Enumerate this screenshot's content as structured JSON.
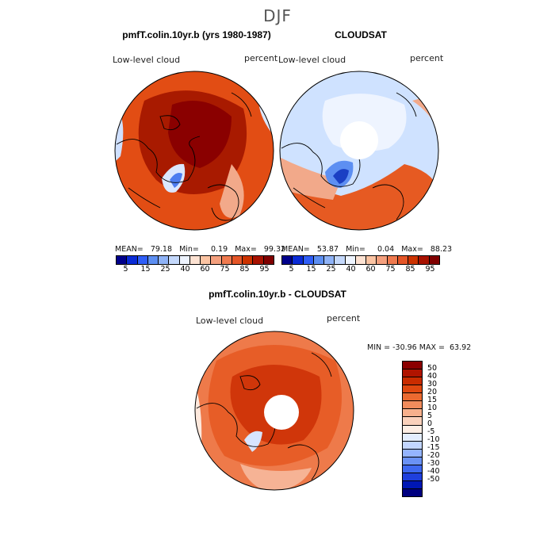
{
  "season": "DJF",
  "variable_label": "Low-level cloud",
  "units": "percent",
  "panels": [
    {
      "title": "pmfT.colin.10yr.b (yrs 1980-1987)",
      "stats": "MEAN=   79.18   Min=     0.19   Max=   99.32",
      "map_palette": [
        "#8a0000",
        "#b01a00",
        "#c93500",
        "#e05a20",
        "#eb8050",
        "#f2a98a"
      ]
    },
    {
      "title": "CLOUDSAT",
      "stats": "MEAN=   53.87   Min=     0.04   Max=   88.23",
      "map_palette": [
        "#cfe2ff",
        "#eef4ff",
        "#f2a98a",
        "#e05a20",
        "#5d8ff2",
        "#1a3fc4"
      ]
    }
  ],
  "colorbar_abs": {
    "colors": [
      "#00008b",
      "#0a2bd6",
      "#2f5ef7",
      "#5d8ff2",
      "#8fb3f7",
      "#c4d8fb",
      "#eef4ff",
      "#fde2d2",
      "#fbc4a3",
      "#f4a07e",
      "#ef7a4f",
      "#e45628",
      "#cc3300",
      "#a81200",
      "#800000"
    ],
    "tick_labels": [
      "5",
      "15",
      "25",
      "40",
      "60",
      "75",
      "85",
      "95"
    ]
  },
  "diff_panel": {
    "title": "pmfT.colin.10yr.b - CLOUDSAT",
    "minmax": "MIN = -30.96 MAX =  63.92",
    "map_palette": [
      "#b41a00",
      "#e24a10",
      "#ee7a4a",
      "#f6b395",
      "#fde8dc",
      "#d7e4ff"
    ],
    "colorbar": {
      "colors": [
        "#8b0000",
        "#b01400",
        "#c92c00",
        "#df4810",
        "#eb6a30",
        "#f28c5c",
        "#f7b08c",
        "#fad1bb",
        "#fdeee4",
        "#e4eeff",
        "#c2d5ff",
        "#94b4ff",
        "#6a92f5",
        "#3e68f0",
        "#1f3fdd",
        "#0017b5",
        "#000080"
      ],
      "tick_labels": [
        "50",
        "40",
        "30",
        "20",
        "15",
        "10",
        "5",
        "0",
        "-5",
        "-10",
        "-15",
        "-20",
        "-30",
        "-40",
        "-50"
      ]
    }
  }
}
